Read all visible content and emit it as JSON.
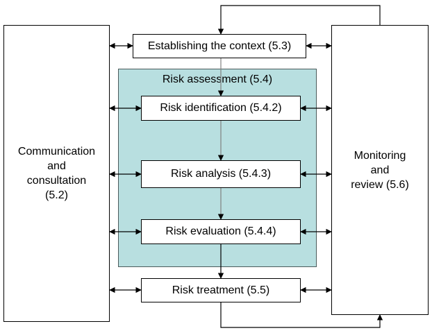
{
  "diagram": {
    "assessment_title": "Risk assessment (5.4)",
    "left_box": "Communication\nand\nconsultation\n(5.2)",
    "right_box": "Monitoring\nand\nreview (5.6)",
    "steps": {
      "context": "Establishing the context (5.3)",
      "identification": "Risk identification (5.4.2)",
      "analysis": "Risk analysis (5.4.3)",
      "evaluation": "Risk evaluation (5.4.4)",
      "treatment": "Risk treatment (5.5)"
    },
    "colors": {
      "assessment_fill": "#b8dfe0",
      "stroke": "#000000",
      "flow_line": "#808080"
    }
  }
}
